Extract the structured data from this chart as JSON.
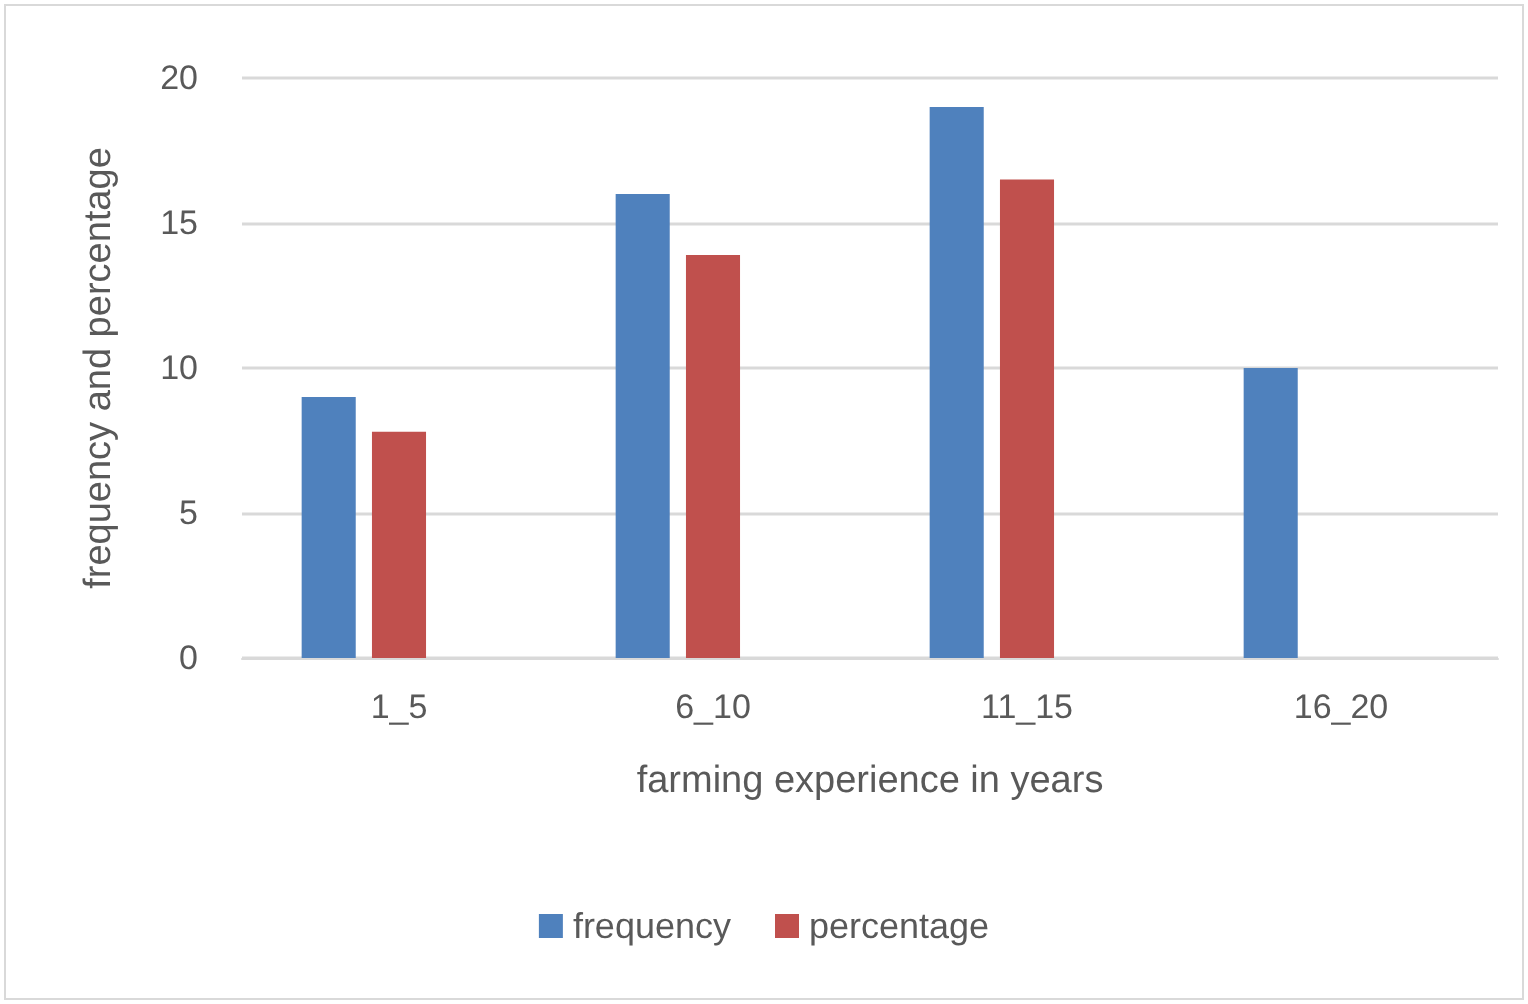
{
  "chart_data": {
    "type": "bar",
    "xlabel": "farming experience in years",
    "ylabel": "frequency and percentage",
    "categories": [
      "1_5",
      "6_10",
      "11_15",
      "16_20"
    ],
    "series": [
      {
        "name": "frequency",
        "color": "#4f81bd",
        "values": [
          9,
          16,
          19,
          10
        ]
      },
      {
        "name": "percentage",
        "color": "#c0504d",
        "values": [
          7.8,
          13.9,
          16.5,
          null
        ]
      },
      {
        "color": "#9bbb59",
        "values": [
          null,
          null,
          null,
          null
        ]
      }
    ],
    "ylim": [
      0,
      20
    ],
    "yticks": [
      0,
      5,
      10,
      15,
      20
    ],
    "grid": "y",
    "legend": "bottom"
  }
}
